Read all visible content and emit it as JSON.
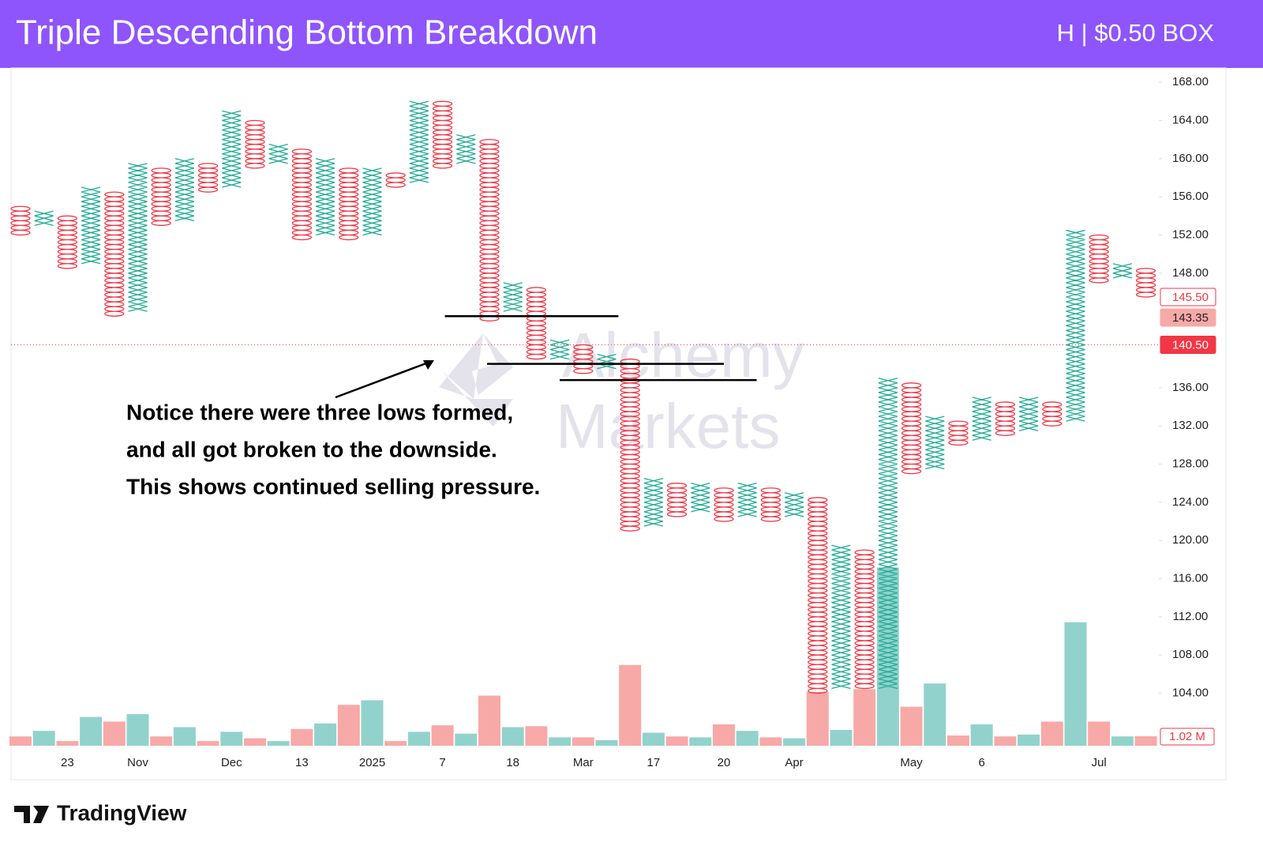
{
  "header": {
    "title": "Triple Descending Bottom Breakdown",
    "meta": "H | $0.50 BOX"
  },
  "chart_data": {
    "type": "point_and_figure",
    "box_size": 0.5,
    "x_color": "#22ab94",
    "o_color": "#f23645",
    "ylim": [
      98.5,
      169.5
    ],
    "yticks": [
      {
        "value": 168,
        "label": "168.00"
      },
      {
        "value": 164,
        "label": "164.00"
      },
      {
        "value": 160,
        "label": "160.00"
      },
      {
        "value": 156,
        "label": "156.00"
      },
      {
        "value": 152,
        "label": "152.00"
      },
      {
        "value": 148,
        "label": "148.00"
      },
      {
        "value": 136,
        "label": "136.00"
      },
      {
        "value": 132,
        "label": "132.00"
      },
      {
        "value": 128,
        "label": "128.00"
      },
      {
        "value": 124,
        "label": "124.00"
      },
      {
        "value": 120,
        "label": "120.00"
      },
      {
        "value": 116,
        "label": "116.00"
      },
      {
        "value": 112,
        "label": "112.00"
      },
      {
        "value": 108,
        "label": "108.00"
      },
      {
        "value": 104,
        "label": "104.00"
      }
    ],
    "price_markers": [
      {
        "value": 145.5,
        "label": "145.50",
        "style": "outline"
      },
      {
        "value": 143.35,
        "label": "143.35",
        "style": "soft"
      },
      {
        "value": 140.5,
        "label": "140.50",
        "style": "solid",
        "line": true
      }
    ],
    "categories": [
      null,
      null,
      "23",
      null,
      null,
      "Nov",
      null,
      null,
      null,
      "Dec",
      null,
      null,
      "13",
      null,
      null,
      "2025",
      null,
      null,
      "7",
      null,
      null,
      "18",
      null,
      null,
      "Mar",
      null,
      null,
      "17",
      null,
      null,
      "20",
      null,
      null,
      "Apr",
      null,
      null,
      null,
      null,
      "May",
      null,
      null,
      "6",
      null,
      null,
      null,
      null,
      "Jul",
      null,
      null
    ],
    "columns": [
      {
        "kind": "O",
        "high": 155,
        "low": 152
      },
      {
        "kind": "X",
        "high": 154.5,
        "low": 153
      },
      {
        "kind": "O",
        "high": 154,
        "low": 148.5
      },
      {
        "kind": "X",
        "high": 157,
        "low": 149
      },
      {
        "kind": "O",
        "high": 156.5,
        "low": 143.5
      },
      {
        "kind": "X",
        "high": 159.5,
        "low": 144
      },
      {
        "kind": "O",
        "high": 159,
        "low": 153
      },
      {
        "kind": "X",
        "high": 160,
        "low": 153.5
      },
      {
        "kind": "O",
        "high": 159.5,
        "low": 156.5
      },
      {
        "kind": "X",
        "high": 165,
        "low": 157
      },
      {
        "kind": "O",
        "high": 164,
        "low": 159
      },
      {
        "kind": "X",
        "high": 161.5,
        "low": 159.5
      },
      {
        "kind": "O",
        "high": 161,
        "low": 151.5
      },
      {
        "kind": "X",
        "high": 160,
        "low": 152
      },
      {
        "kind": "O",
        "high": 159,
        "low": 151.5
      },
      {
        "kind": "X",
        "high": 159,
        "low": 152
      },
      {
        "kind": "O",
        "high": 158.5,
        "low": 157
      },
      {
        "kind": "X",
        "high": 166,
        "low": 157.5
      },
      {
        "kind": "O",
        "high": 166,
        "low": 159
      },
      {
        "kind": "X",
        "high": 162.5,
        "low": 159.5
      },
      {
        "kind": "O",
        "high": 162,
        "low": 143
      },
      {
        "kind": "X",
        "high": 147,
        "low": 144
      },
      {
        "kind": "O",
        "high": 146.5,
        "low": 139
      },
      {
        "kind": "X",
        "high": 141,
        "low": 139
      },
      {
        "kind": "O",
        "high": 140.5,
        "low": 137.5
      },
      {
        "kind": "X",
        "high": 139.5,
        "low": 138
      },
      {
        "kind": "O",
        "high": 139,
        "low": 121
      },
      {
        "kind": "X",
        "high": 126.5,
        "low": 121.5
      },
      {
        "kind": "O",
        "high": 126,
        "low": 122.5
      },
      {
        "kind": "X",
        "high": 126,
        "low": 123
      },
      {
        "kind": "O",
        "high": 125.5,
        "low": 122
      },
      {
        "kind": "X",
        "high": 126,
        "low": 122.5
      },
      {
        "kind": "O",
        "high": 125.5,
        "low": 122
      },
      {
        "kind": "X",
        "high": 125,
        "low": 122.5
      },
      {
        "kind": "O",
        "high": 124.5,
        "low": 104
      },
      {
        "kind": "X",
        "high": 119.5,
        "low": 104.5
      },
      {
        "kind": "O",
        "high": 119,
        "low": 104.5
      },
      {
        "kind": "X",
        "high": 137,
        "low": 104.5
      },
      {
        "kind": "O",
        "high": 136.5,
        "low": 127
      },
      {
        "kind": "X",
        "high": 133,
        "low": 127.5
      },
      {
        "kind": "O",
        "high": 132.5,
        "low": 130
      },
      {
        "kind": "X",
        "high": 135,
        "low": 130.5
      },
      {
        "kind": "O",
        "high": 134.5,
        "low": 131
      },
      {
        "kind": "X",
        "high": 135,
        "low": 131.5
      },
      {
        "kind": "O",
        "high": 134.5,
        "low": 132
      },
      {
        "kind": "X",
        "high": 152.5,
        "low": 132.5
      },
      {
        "kind": "O",
        "high": 152,
        "low": 147
      },
      {
        "kind": "X",
        "high": 149,
        "low": 147.5
      },
      {
        "kind": "O",
        "high": 148.5,
        "low": 145.5
      }
    ],
    "volume": {
      "x_color": "#92d2cc",
      "o_color": "#f7a9a7",
      "ylim": [
        0,
        20
      ],
      "current_label": "1.02 M",
      "values": [
        1.0,
        1.6,
        0.5,
        3.1,
        2.6,
        3.4,
        1.0,
        2.0,
        0.5,
        1.5,
        0.8,
        0.5,
        1.8,
        2.4,
        4.4,
        4.9,
        0.5,
        1.5,
        2.2,
        1.3,
        5.4,
        2.0,
        2.1,
        0.9,
        0.9,
        0.6,
        8.7,
        1.4,
        1.0,
        0.9,
        2.3,
        1.6,
        0.9,
        0.8,
        5.8,
        1.7,
        6.1,
        19.2,
        4.2,
        6.7,
        1.1,
        2.3,
        1.0,
        1.2,
        2.6,
        13.3,
        2.6,
        1.0,
        1.02
      ]
    },
    "support_lines": [
      {
        "value": 143.5,
        "from": 18.1,
        "to": 25.5
      },
      {
        "value": 138.5,
        "from": 19.9,
        "to": 30.0
      },
      {
        "value": 136.8,
        "from": 23.0,
        "to": 31.4
      }
    ],
    "annotation": [
      "Notice there were three lows formed,",
      "and all got broken to the downside.",
      "This shows continued selling pressure."
    ]
  },
  "watermark": [
    "Alchemy",
    "Markets"
  ],
  "footer": {
    "brand": "TradingView"
  }
}
